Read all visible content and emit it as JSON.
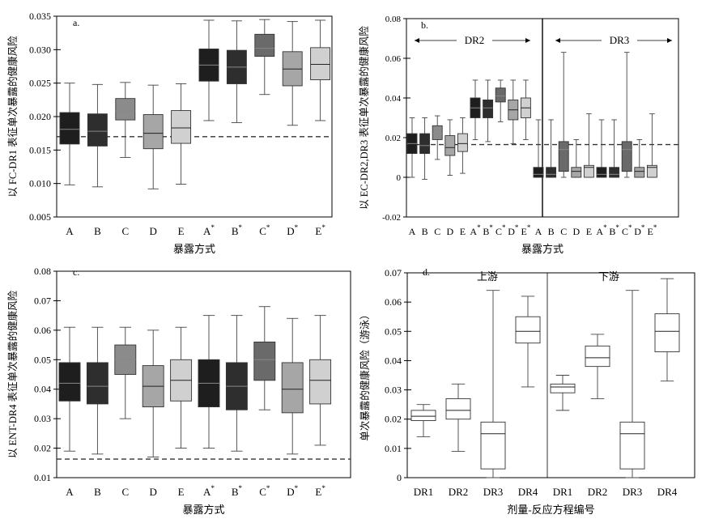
{
  "chart_data": [
    {
      "id": "a",
      "type": "box",
      "panel_label": "a.",
      "title": "",
      "ylabel": "以 FC-DR1 表征单次暴露的健康风险",
      "xlabel": "暴露方式",
      "ylim": [
        0.005,
        0.035
      ],
      "yticks": [
        0.005,
        0.01,
        0.015,
        0.02,
        0.025,
        0.03,
        0.035
      ],
      "ytick_labels": [
        "0.005",
        "0.010",
        "0.015",
        "0.020",
        "0.025",
        "0.030",
        "0.035"
      ],
      "reference_line": 0.017,
      "categories": [
        {
          "base": "A",
          "star": ""
        },
        {
          "base": "B",
          "star": ""
        },
        {
          "base": "C",
          "star": ""
        },
        {
          "base": "D",
          "star": ""
        },
        {
          "base": "E",
          "star": ""
        },
        {
          "base": "A",
          "star": "*"
        },
        {
          "base": "B",
          "star": "*"
        },
        {
          "base": "C",
          "star": "*"
        },
        {
          "base": "D",
          "star": "*"
        },
        {
          "base": "E",
          "star": "*"
        }
      ],
      "boxes": [
        {
          "whisker_low": 0.0098,
          "q1": 0.0159,
          "median": 0.0181,
          "q3": 0.0206,
          "whisker_high": 0.025,
          "color": "#1e1e1e"
        },
        {
          "whisker_low": 0.0095,
          "q1": 0.0156,
          "median": 0.0178,
          "q3": 0.0204,
          "whisker_high": 0.0248,
          "color": "#2e2e2e"
        },
        {
          "whisker_low": 0.0139,
          "q1": 0.0195,
          "median": 0.0208,
          "q3": 0.0227,
          "whisker_high": 0.0251,
          "color": "#8b8b8b"
        },
        {
          "whisker_low": 0.0092,
          "q1": 0.0152,
          "median": 0.0175,
          "q3": 0.0203,
          "whisker_high": 0.0247,
          "color": "#a6a6a6"
        },
        {
          "whisker_low": 0.0099,
          "q1": 0.016,
          "median": 0.0183,
          "q3": 0.0209,
          "whisker_high": 0.0249,
          "color": "#d0d0d0"
        },
        {
          "whisker_low": 0.0194,
          "q1": 0.0253,
          "median": 0.0277,
          "q3": 0.0301,
          "whisker_high": 0.0344,
          "color": "#1e1e1e"
        },
        {
          "whisker_low": 0.0191,
          "q1": 0.0249,
          "median": 0.0274,
          "q3": 0.0299,
          "whisker_high": 0.0343,
          "color": "#2e2e2e"
        },
        {
          "whisker_low": 0.0233,
          "q1": 0.029,
          "median": 0.0302,
          "q3": 0.0323,
          "whisker_high": 0.0345,
          "color": "#6a6a6a"
        },
        {
          "whisker_low": 0.0187,
          "q1": 0.0246,
          "median": 0.0271,
          "q3": 0.0297,
          "whisker_high": 0.0342,
          "color": "#a6a6a6"
        },
        {
          "whisker_low": 0.0194,
          "q1": 0.0255,
          "median": 0.0278,
          "q3": 0.0303,
          "whisker_high": 0.0344,
          "color": "#d0d0d0"
        }
      ]
    },
    {
      "id": "b",
      "type": "box",
      "panel_label": "b.",
      "title": "",
      "ylabel": "以 EC-DR2,DR3 表征单次暴露的健康风险",
      "xlabel": "暴露方式",
      "ylim": [
        -0.02,
        0.08
      ],
      "yticks": [
        -0.02,
        0,
        0.02,
        0.04,
        0.06,
        0.08
      ],
      "ytick_labels": [
        "-0.02",
        "0",
        "0.02",
        "0.04",
        "0.06",
        "0.08"
      ],
      "reference_line": 0.0165,
      "group_labels": [
        "DR2",
        "DR3"
      ],
      "categories": [
        {
          "base": "A",
          "star": ""
        },
        {
          "base": "B",
          "star": ""
        },
        {
          "base": "C",
          "star": ""
        },
        {
          "base": "D",
          "star": ""
        },
        {
          "base": "E",
          "star": ""
        },
        {
          "base": "A",
          "star": "*"
        },
        {
          "base": "B",
          "star": "*"
        },
        {
          "base": "C",
          "star": "*"
        },
        {
          "base": "D",
          "star": "*"
        },
        {
          "base": "E",
          "star": "*"
        },
        {
          "base": "A",
          "star": ""
        },
        {
          "base": "B",
          "star": ""
        },
        {
          "base": "C",
          "star": ""
        },
        {
          "base": "D",
          "star": ""
        },
        {
          "base": "E",
          "star": ""
        },
        {
          "base": "A",
          "star": "*"
        },
        {
          "base": "B",
          "star": "*"
        },
        {
          "base": "C",
          "star": "*"
        },
        {
          "base": "D",
          "star": "*"
        },
        {
          "base": "E",
          "star": "*"
        }
      ],
      "boxes": [
        {
          "whisker_low": 0.0,
          "q1": 0.012,
          "median": 0.017,
          "q3": 0.022,
          "whisker_high": 0.03,
          "color": "#1e1e1e"
        },
        {
          "whisker_low": -0.001,
          "q1": 0.012,
          "median": 0.016,
          "q3": 0.022,
          "whisker_high": 0.03,
          "color": "#2e2e2e"
        },
        {
          "whisker_low": 0.009,
          "q1": 0.019,
          "median": 0.022,
          "q3": 0.026,
          "whisker_high": 0.031,
          "color": "#8b8b8b"
        },
        {
          "whisker_low": 0.001,
          "q1": 0.011,
          "median": 0.015,
          "q3": 0.021,
          "whisker_high": 0.029,
          "color": "#a6a6a6"
        },
        {
          "whisker_low": 0.002,
          "q1": 0.013,
          "median": 0.017,
          "q3": 0.022,
          "whisker_high": 0.03,
          "color": "#d0d0d0"
        },
        {
          "whisker_low": 0.019,
          "q1": 0.03,
          "median": 0.035,
          "q3": 0.04,
          "whisker_high": 0.049,
          "color": "#1e1e1e"
        },
        {
          "whisker_low": 0.018,
          "q1": 0.03,
          "median": 0.035,
          "q3": 0.039,
          "whisker_high": 0.049,
          "color": "#2e2e2e"
        },
        {
          "whisker_low": 0.028,
          "q1": 0.038,
          "median": 0.041,
          "q3": 0.045,
          "whisker_high": 0.049,
          "color": "#6a6a6a"
        },
        {
          "whisker_low": 0.017,
          "q1": 0.029,
          "median": 0.034,
          "q3": 0.039,
          "whisker_high": 0.049,
          "color": "#a6a6a6"
        },
        {
          "whisker_low": 0.019,
          "q1": 0.03,
          "median": 0.035,
          "q3": 0.04,
          "whisker_high": 0.049,
          "color": "#d0d0d0"
        },
        {
          "whisker_low": 0.0,
          "q1": 0.0,
          "median": 0.0015,
          "q3": 0.005,
          "whisker_high": 0.029,
          "color": "#1e1e1e"
        },
        {
          "whisker_low": 0.0,
          "q1": 0.0,
          "median": 0.0015,
          "q3": 0.005,
          "whisker_high": 0.029,
          "color": "#2e2e2e"
        },
        {
          "whisker_low": 0.0,
          "q1": 0.003,
          "median": 0.014,
          "q3": 0.018,
          "whisker_high": 0.063,
          "color": "#6a6a6a"
        },
        {
          "whisker_low": 0.0,
          "q1": 0.0,
          "median": 0.003,
          "q3": 0.005,
          "whisker_high": 0.019,
          "color": "#a6a6a6"
        },
        {
          "whisker_low": 0.0,
          "q1": 0.0,
          "median": 0.005,
          "q3": 0.006,
          "whisker_high": 0.032,
          "color": "#d0d0d0"
        },
        {
          "whisker_low": 0.0,
          "q1": 0.0,
          "median": 0.0015,
          "q3": 0.005,
          "whisker_high": 0.029,
          "color": "#1e1e1e"
        },
        {
          "whisker_low": 0.0,
          "q1": 0.0,
          "median": 0.0015,
          "q3": 0.005,
          "whisker_high": 0.029,
          "color": "#2e2e2e"
        },
        {
          "whisker_low": 0.0,
          "q1": 0.003,
          "median": 0.014,
          "q3": 0.018,
          "whisker_high": 0.063,
          "color": "#6a6a6a"
        },
        {
          "whisker_low": 0.0,
          "q1": 0.0,
          "median": 0.003,
          "q3": 0.005,
          "whisker_high": 0.019,
          "color": "#a6a6a6"
        },
        {
          "whisker_low": 0.0,
          "q1": 0.0,
          "median": 0.005,
          "q3": 0.006,
          "whisker_high": 0.032,
          "color": "#d0d0d0"
        }
      ]
    },
    {
      "id": "c",
      "type": "box",
      "panel_label": "c.",
      "title": "",
      "ylabel": "以 ENT-DR4 表征单次暴露的健康风险",
      "xlabel": "暴露方式",
      "ylim": [
        0.01,
        0.08
      ],
      "yticks": [
        0.01,
        0.02,
        0.03,
        0.04,
        0.05,
        0.06,
        0.07,
        0.08
      ],
      "ytick_labels": [
        "0.01",
        "0.02",
        "0.03",
        "0.04",
        "0.05",
        "0.06",
        "0.07",
        "0.08"
      ],
      "reference_line": 0.0163,
      "categories": [
        {
          "base": "A",
          "star": ""
        },
        {
          "base": "B",
          "star": ""
        },
        {
          "base": "C",
          "star": ""
        },
        {
          "base": "D",
          "star": ""
        },
        {
          "base": "E",
          "star": ""
        },
        {
          "base": "A",
          "star": "*"
        },
        {
          "base": "B",
          "star": "*"
        },
        {
          "base": "C",
          "star": "*"
        },
        {
          "base": "D",
          "star": "*"
        },
        {
          "base": "E",
          "star": "*"
        }
      ],
      "boxes": [
        {
          "whisker_low": 0.019,
          "q1": 0.036,
          "median": 0.042,
          "q3": 0.049,
          "whisker_high": 0.061,
          "color": "#1e1e1e"
        },
        {
          "whisker_low": 0.018,
          "q1": 0.035,
          "median": 0.041,
          "q3": 0.049,
          "whisker_high": 0.061,
          "color": "#2e2e2e"
        },
        {
          "whisker_low": 0.03,
          "q1": 0.045,
          "median": 0.05,
          "q3": 0.055,
          "whisker_high": 0.061,
          "color": "#8b8b8b"
        },
        {
          "whisker_low": 0.017,
          "q1": 0.034,
          "median": 0.041,
          "q3": 0.048,
          "whisker_high": 0.06,
          "color": "#a6a6a6"
        },
        {
          "whisker_low": 0.02,
          "q1": 0.036,
          "median": 0.043,
          "q3": 0.05,
          "whisker_high": 0.061,
          "color": "#d0d0d0"
        },
        {
          "whisker_low": 0.02,
          "q1": 0.034,
          "median": 0.042,
          "q3": 0.05,
          "whisker_high": 0.065,
          "color": "#1e1e1e"
        },
        {
          "whisker_low": 0.019,
          "q1": 0.033,
          "median": 0.041,
          "q3": 0.049,
          "whisker_high": 0.065,
          "color": "#2e2e2e"
        },
        {
          "whisker_low": 0.033,
          "q1": 0.043,
          "median": 0.05,
          "q3": 0.056,
          "whisker_high": 0.068,
          "color": "#6a6a6a"
        },
        {
          "whisker_low": 0.018,
          "q1": 0.032,
          "median": 0.04,
          "q3": 0.049,
          "whisker_high": 0.064,
          "color": "#a6a6a6"
        },
        {
          "whisker_low": 0.021,
          "q1": 0.035,
          "median": 0.043,
          "q3": 0.05,
          "whisker_high": 0.065,
          "color": "#d0d0d0"
        }
      ]
    },
    {
      "id": "d",
      "type": "box",
      "panel_label": "d.",
      "title": "",
      "ylabel": "单次暴露的健康风险（游泳）",
      "xlabel": "剂量-反应方程编号",
      "ylim": [
        0,
        0.07
      ],
      "yticks": [
        0,
        0.01,
        0.02,
        0.03,
        0.04,
        0.05,
        0.06,
        0.07
      ],
      "ytick_labels": [
        "0",
        "0.01",
        "0.02",
        "0.03",
        "0.04",
        "0.05",
        "0.06",
        "0.07"
      ],
      "group_labels": [
        "上游",
        "下游"
      ],
      "categories": [
        {
          "base": "DR1",
          "star": ""
        },
        {
          "base": "DR2",
          "star": ""
        },
        {
          "base": "DR3",
          "star": ""
        },
        {
          "base": "DR4",
          "star": ""
        },
        {
          "base": "DR1",
          "star": ""
        },
        {
          "base": "DR2",
          "star": ""
        },
        {
          "base": "DR3",
          "star": ""
        },
        {
          "base": "DR4",
          "star": ""
        }
      ],
      "boxes": [
        {
          "whisker_low": 0.014,
          "q1": 0.0195,
          "median": 0.021,
          "q3": 0.023,
          "whisker_high": 0.025,
          "color": "#ffffff"
        },
        {
          "whisker_low": 0.009,
          "q1": 0.02,
          "median": 0.023,
          "q3": 0.027,
          "whisker_high": 0.032,
          "color": "#ffffff"
        },
        {
          "whisker_low": 0.0,
          "q1": 0.003,
          "median": 0.015,
          "q3": 0.019,
          "whisker_high": 0.064,
          "color": "#ffffff"
        },
        {
          "whisker_low": 0.031,
          "q1": 0.046,
          "median": 0.05,
          "q3": 0.055,
          "whisker_high": 0.062,
          "color": "#ffffff"
        },
        {
          "whisker_low": 0.023,
          "q1": 0.029,
          "median": 0.031,
          "q3": 0.032,
          "whisker_high": 0.035,
          "color": "#ffffff"
        },
        {
          "whisker_low": 0.027,
          "q1": 0.038,
          "median": 0.041,
          "q3": 0.045,
          "whisker_high": 0.049,
          "color": "#ffffff"
        },
        {
          "whisker_low": 0.0,
          "q1": 0.003,
          "median": 0.015,
          "q3": 0.019,
          "whisker_high": 0.064,
          "color": "#ffffff"
        },
        {
          "whisker_low": 0.033,
          "q1": 0.043,
          "median": 0.05,
          "q3": 0.056,
          "whisker_high": 0.068,
          "color": "#ffffff"
        }
      ]
    }
  ]
}
